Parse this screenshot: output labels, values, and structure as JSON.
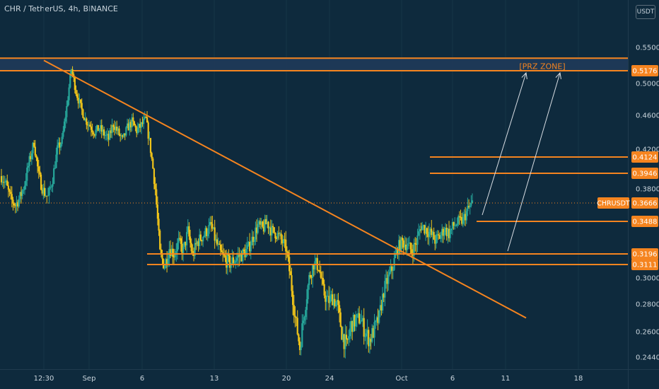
{
  "header": {
    "title": "CHR / TetherUS, 4h, BINANCE",
    "currency": "USDT"
  },
  "colors": {
    "background": "#0e2a3d",
    "candle_up": "#26a69a",
    "candle_down": "#f0c419",
    "drawing": "#f5841f",
    "zone_fill": "#1f3a59",
    "axis_text": "#c9d4dc"
  },
  "chart_data": {
    "type": "candlestick",
    "symbol": "CHRUSDT",
    "timeframe": "4h",
    "exchange": "BINANCE",
    "x_tick_labels": [
      "12:30",
      "Sep",
      "6",
      "13",
      "20",
      "24",
      "Oct",
      "6",
      "11",
      "18"
    ],
    "y_tick_labels": [
      "0.5500",
      "0.5000",
      "0.4600",
      "0.4200",
      "0.3800",
      "0.3000",
      "0.2800",
      "0.2600",
      "0.2440"
    ],
    "y_range": [
      0.235,
      0.575
    ],
    "price_labels": [
      "0.5176",
      "0.4124",
      "0.3946",
      "0.3666",
      "0.3488",
      "0.3196",
      "0.3111"
    ],
    "last_price_label": "CHRUSDT",
    "last_price": 0.3666,
    "prz_zone": {
      "label": "[PRZ ZONE]",
      "low": 0.5176,
      "high": 0.535
    },
    "horizontal_levels": [
      0.4124,
      0.3946,
      0.3488,
      0.3196,
      0.3111
    ],
    "trendline": {
      "from": [
        "Aug 28",
        0.532
      ],
      "to": [
        "Oct 12",
        0.27
      ]
    },
    "close_path": [
      0.392,
      0.384,
      0.37,
      0.365,
      0.372,
      0.385,
      0.408,
      0.428,
      0.392,
      0.378,
      0.372,
      0.39,
      0.42,
      0.43,
      0.47,
      0.52,
      0.49,
      0.47,
      0.455,
      0.448,
      0.44,
      0.445,
      0.438,
      0.432,
      0.45,
      0.44,
      0.43,
      0.445,
      0.452,
      0.442,
      0.448,
      0.455,
      0.42,
      0.38,
      0.32,
      0.31,
      0.325,
      0.32,
      0.33,
      0.322,
      0.34,
      0.318,
      0.33,
      0.335,
      0.34,
      0.345,
      0.33,
      0.32,
      0.315,
      0.312,
      0.315,
      0.318,
      0.32,
      0.325,
      0.335,
      0.345,
      0.342,
      0.348,
      0.34,
      0.338,
      0.332,
      0.325,
      0.3,
      0.27,
      0.25,
      0.275,
      0.3,
      0.312,
      0.31,
      0.29,
      0.282,
      0.285,
      0.28,
      0.26,
      0.25,
      0.265,
      0.268,
      0.27,
      0.26,
      0.255,
      0.262,
      0.27,
      0.29,
      0.3,
      0.31,
      0.325,
      0.33,
      0.328,
      0.322,
      0.33,
      0.345,
      0.342,
      0.338,
      0.332,
      0.335,
      0.342,
      0.338,
      0.345,
      0.348,
      0.35,
      0.36,
      0.366
    ]
  }
}
